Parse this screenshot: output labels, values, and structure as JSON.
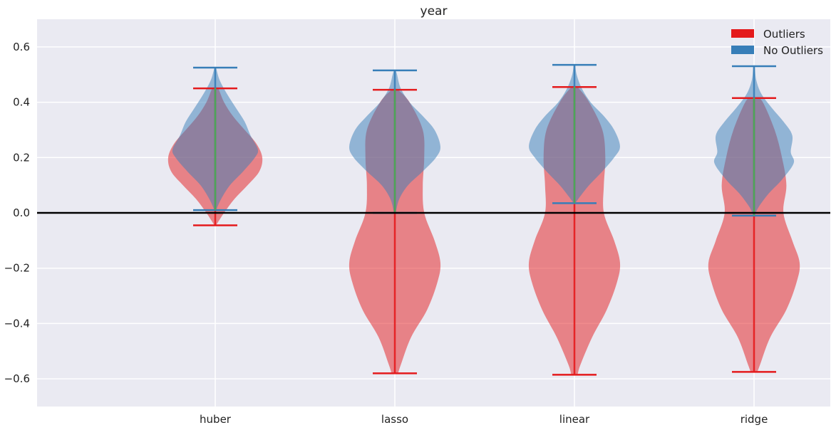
{
  "chart_data": {
    "type": "violin",
    "title": "year",
    "xlabel": "",
    "ylabel": "",
    "categories": [
      "huber",
      "lasso",
      "linear",
      "ridge"
    ],
    "ylim": [
      -0.7,
      0.7
    ],
    "yticks": [
      -0.6,
      -0.4,
      -0.2,
      0.0,
      0.2,
      0.4,
      0.6
    ],
    "ytick_labels": [
      "−0.6",
      "−0.4",
      "−0.2",
      "0.0",
      "0.2",
      "0.4",
      "0.6"
    ],
    "grid": true,
    "zero_line": true,
    "legend_position": "top-right",
    "series": [
      {
        "name": "Outliers",
        "color": "#e41a1c",
        "stats": [
          {
            "min": -0.045,
            "max": 0.45,
            "mode": 0.21
          },
          {
            "min": -0.58,
            "max": 0.445,
            "mode": -0.18
          },
          {
            "min": -0.585,
            "max": 0.455,
            "mode": -0.18
          },
          {
            "min": -0.575,
            "max": 0.415,
            "mode": -0.18
          }
        ],
        "shapes": [
          [
            [
              -0.045,
              0.005
            ],
            [
              0.0,
              0.06
            ],
            [
              0.05,
              0.13
            ],
            [
              0.1,
              0.22
            ],
            [
              0.15,
              0.3
            ],
            [
              0.2,
              0.32
            ],
            [
              0.25,
              0.28
            ],
            [
              0.3,
              0.2
            ],
            [
              0.35,
              0.12
            ],
            [
              0.4,
              0.06
            ],
            [
              0.45,
              0.02
            ]
          ],
          [
            [
              -0.58,
              0.02
            ],
            [
              -0.55,
              0.04
            ],
            [
              -0.45,
              0.11
            ],
            [
              -0.35,
              0.22
            ],
            [
              -0.25,
              0.29
            ],
            [
              -0.18,
              0.31
            ],
            [
              -0.1,
              0.27
            ],
            [
              0.0,
              0.2
            ],
            [
              0.1,
              0.19
            ],
            [
              0.2,
              0.2
            ],
            [
              0.3,
              0.19
            ],
            [
              0.4,
              0.1
            ],
            [
              0.445,
              0.02
            ]
          ],
          [
            [
              -0.585,
              0.02
            ],
            [
              -0.55,
              0.04
            ],
            [
              -0.45,
              0.12
            ],
            [
              -0.35,
              0.22
            ],
            [
              -0.25,
              0.29
            ],
            [
              -0.18,
              0.31
            ],
            [
              -0.1,
              0.27
            ],
            [
              0.0,
              0.2
            ],
            [
              0.1,
              0.2
            ],
            [
              0.2,
              0.21
            ],
            [
              0.3,
              0.19
            ],
            [
              0.4,
              0.1
            ],
            [
              0.455,
              0.02
            ]
          ],
          [
            [
              -0.575,
              0.02
            ],
            [
              -0.55,
              0.04
            ],
            [
              -0.45,
              0.11
            ],
            [
              -0.35,
              0.22
            ],
            [
              -0.25,
              0.29
            ],
            [
              -0.18,
              0.31
            ],
            [
              -0.1,
              0.26
            ],
            [
              0.0,
              0.2
            ],
            [
              0.1,
              0.22
            ],
            [
              0.2,
              0.19
            ],
            [
              0.3,
              0.14
            ],
            [
              0.4,
              0.06
            ],
            [
              0.415,
              0.02
            ]
          ]
        ]
      },
      {
        "name": "No Outliers",
        "color": "#377eb8",
        "stats": [
          {
            "min": 0.01,
            "max": 0.525,
            "mode": 0.23
          },
          {
            "min": 0.0,
            "max": 0.515,
            "mode": 0.24
          },
          {
            "min": 0.035,
            "max": 0.535,
            "mode": 0.24
          },
          {
            "min": -0.01,
            "max": 0.53,
            "mode": 0.18
          }
        ],
        "shapes": [
          [
            [
              0.01,
              0.005
            ],
            [
              0.05,
              0.04
            ],
            [
              0.1,
              0.1
            ],
            [
              0.15,
              0.19
            ],
            [
              0.2,
              0.27
            ],
            [
              0.23,
              0.29
            ],
            [
              0.28,
              0.24
            ],
            [
              0.33,
              0.2
            ],
            [
              0.38,
              0.14
            ],
            [
              0.43,
              0.08
            ],
            [
              0.48,
              0.03
            ],
            [
              0.525,
              0.005
            ]
          ],
          [
            [
              0.0,
              0.005
            ],
            [
              0.05,
              0.03
            ],
            [
              0.1,
              0.09
            ],
            [
              0.15,
              0.19
            ],
            [
              0.2,
              0.28
            ],
            [
              0.24,
              0.31
            ],
            [
              0.3,
              0.27
            ],
            [
              0.35,
              0.19
            ],
            [
              0.4,
              0.1
            ],
            [
              0.45,
              0.04
            ],
            [
              0.5,
              0.015
            ],
            [
              0.515,
              0.005
            ]
          ],
          [
            [
              0.035,
              0.005
            ],
            [
              0.06,
              0.04
            ],
            [
              0.1,
              0.1
            ],
            [
              0.15,
              0.19
            ],
            [
              0.2,
              0.27
            ],
            [
              0.24,
              0.31
            ],
            [
              0.3,
              0.27
            ],
            [
              0.35,
              0.2
            ],
            [
              0.4,
              0.11
            ],
            [
              0.45,
              0.05
            ],
            [
              0.5,
              0.015
            ],
            [
              0.535,
              0.005
            ]
          ],
          [
            [
              -0.01,
              0.005
            ],
            [
              0.02,
              0.03
            ],
            [
              0.07,
              0.1
            ],
            [
              0.12,
              0.19
            ],
            [
              0.18,
              0.27
            ],
            [
              0.22,
              0.25
            ],
            [
              0.28,
              0.26
            ],
            [
              0.33,
              0.2
            ],
            [
              0.38,
              0.12
            ],
            [
              0.43,
              0.05
            ],
            [
              0.48,
              0.015
            ],
            [
              0.53,
              0.005
            ]
          ]
        ]
      }
    ]
  }
}
